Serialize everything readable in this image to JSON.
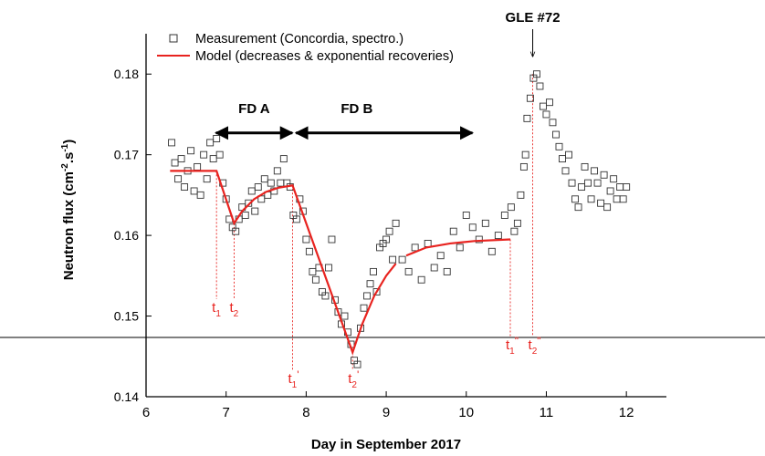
{
  "chart_data": {
    "type": "scatter",
    "xlabel": "Day in September 2017",
    "ylabel": {
      "text": "Neutron flux (cm",
      "sup1": "-2",
      "mid": ".s",
      "sup2": "-1",
      "end": ")"
    },
    "xlim": [
      6,
      12.5
    ],
    "ylim": [
      0.14,
      0.185
    ],
    "xticks": [
      6,
      7,
      8,
      9,
      10,
      11,
      12
    ],
    "yticks": [
      0.14,
      0.15,
      0.16,
      0.17,
      0.18
    ],
    "series": [
      {
        "name": "Measurement (Concordia, spectro.)",
        "color": "#333333",
        "marker": "square",
        "x": [
          6.32,
          6.36,
          6.4,
          6.44,
          6.48,
          6.52,
          6.56,
          6.6,
          6.64,
          6.68,
          6.72,
          6.76,
          6.8,
          6.84,
          6.88,
          6.92,
          6.96,
          7.0,
          7.04,
          7.08,
          7.12,
          7.16,
          7.2,
          7.24,
          7.28,
          7.32,
          7.36,
          7.4,
          7.44,
          7.48,
          7.52,
          7.56,
          7.6,
          7.64,
          7.68,
          7.72,
          7.76,
          7.8,
          7.84,
          7.88,
          7.92,
          7.96,
          8.0,
          8.04,
          8.08,
          8.12,
          8.16,
          8.2,
          8.24,
          8.28,
          8.32,
          8.36,
          8.4,
          8.44,
          8.48,
          8.52,
          8.56,
          8.6,
          8.64,
          8.68,
          8.72,
          8.76,
          8.8,
          8.84,
          8.88,
          8.92,
          8.96,
          9.0,
          9.04,
          9.08,
          9.12,
          9.2,
          9.28,
          9.36,
          9.44,
          9.52,
          9.6,
          9.68,
          9.76,
          9.84,
          9.92,
          10.0,
          10.08,
          10.16,
          10.24,
          10.32,
          10.4,
          10.48,
          10.56,
          10.6,
          10.64,
          10.68,
          10.72,
          10.74,
          10.76,
          10.8,
          10.84,
          10.88,
          10.92,
          10.96,
          11.0,
          11.04,
          11.08,
          11.12,
          11.16,
          11.2,
          11.24,
          11.28,
          11.32,
          11.36,
          11.4,
          11.44,
          11.48,
          11.52,
          11.56,
          11.6,
          11.64,
          11.68,
          11.72,
          11.76,
          11.8,
          11.84,
          11.88,
          11.92,
          11.96,
          12.0
        ],
        "values": [
          0.1715,
          0.169,
          0.167,
          0.1695,
          0.166,
          0.168,
          0.1705,
          0.1655,
          0.1685,
          0.165,
          0.17,
          0.167,
          0.1715,
          0.1695,
          0.172,
          0.17,
          0.1665,
          0.1645,
          0.162,
          0.161,
          0.1605,
          0.162,
          0.1635,
          0.1625,
          0.164,
          0.1655,
          0.163,
          0.166,
          0.1645,
          0.167,
          0.165,
          0.1665,
          0.1655,
          0.168,
          0.1665,
          0.1695,
          0.1665,
          0.166,
          0.1625,
          0.162,
          0.1645,
          0.163,
          0.1595,
          0.158,
          0.1555,
          0.1545,
          0.156,
          0.153,
          0.1525,
          0.156,
          0.1595,
          0.152,
          0.1505,
          0.149,
          0.15,
          0.148,
          0.1465,
          0.1445,
          0.144,
          0.1485,
          0.151,
          0.1525,
          0.154,
          0.1555,
          0.153,
          0.1585,
          0.159,
          0.1595,
          0.1605,
          0.157,
          0.1615,
          0.157,
          0.1555,
          0.1585,
          0.1545,
          0.159,
          0.156,
          0.1575,
          0.1555,
          0.1605,
          0.1585,
          0.1625,
          0.161,
          0.1595,
          0.1615,
          0.158,
          0.16,
          0.1625,
          0.1635,
          0.1605,
          0.1615,
          0.165,
          0.1685,
          0.17,
          0.1745,
          0.177,
          0.1795,
          0.18,
          0.1785,
          0.176,
          0.175,
          0.1765,
          0.174,
          0.1725,
          0.171,
          0.1695,
          0.168,
          0.17,
          0.1665,
          0.1645,
          0.1635,
          0.166,
          0.1685,
          0.1665,
          0.1645,
          0.168,
          0.1665,
          0.164,
          0.1675,
          0.1635,
          0.1655,
          0.167,
          0.1645,
          0.166,
          0.1645,
          0.166
        ]
      },
      {
        "name": "Model (decreases & exponential recoveries)",
        "color": "#e8231f",
        "marker": "line",
        "x": [
          6.3,
          6.88,
          7.1,
          7.2,
          7.35,
          7.5,
          7.65,
          7.83,
          8.58,
          8.7,
          8.85,
          9.0,
          9.12,
          null,
          9.25,
          9.5,
          9.8,
          10.1,
          10.55
        ],
        "values": [
          0.168,
          0.168,
          0.1615,
          0.163,
          0.1645,
          0.1654,
          0.1659,
          0.1662,
          0.1455,
          0.149,
          0.1525,
          0.155,
          0.1565,
          null,
          0.1575,
          0.1585,
          0.159,
          0.1593,
          0.1595
        ]
      }
    ],
    "periods": [
      {
        "label": "FD A",
        "span": [
          6.85,
          7.85
        ]
      },
      {
        "label": "FD B",
        "span": [
          7.85,
          10.1
        ]
      }
    ],
    "event": {
      "label": "GLE #72",
      "x": 10.83
    },
    "markers": [
      {
        "text": "t",
        "sub": "1",
        "sup": "",
        "x": 6.88,
        "y": 0.168
      },
      {
        "text": "t",
        "sub": "2",
        "sup": "",
        "x": 7.1,
        "y": 0.1615
      },
      {
        "text": "t",
        "sub": "1",
        "sup": "'",
        "x": 7.83,
        "y": 0.1662
      },
      {
        "text": "t",
        "sub": "2",
        "sup": "'",
        "x": 8.58,
        "y": 0.1455
      },
      {
        "text": "t",
        "sub": "1",
        "sup": "\"",
        "x": 10.55,
        "y": 0.1595
      },
      {
        "text": "t",
        "sub": "2",
        "sup": "\"",
        "x": 10.83,
        "y": 0.18
      }
    ]
  }
}
